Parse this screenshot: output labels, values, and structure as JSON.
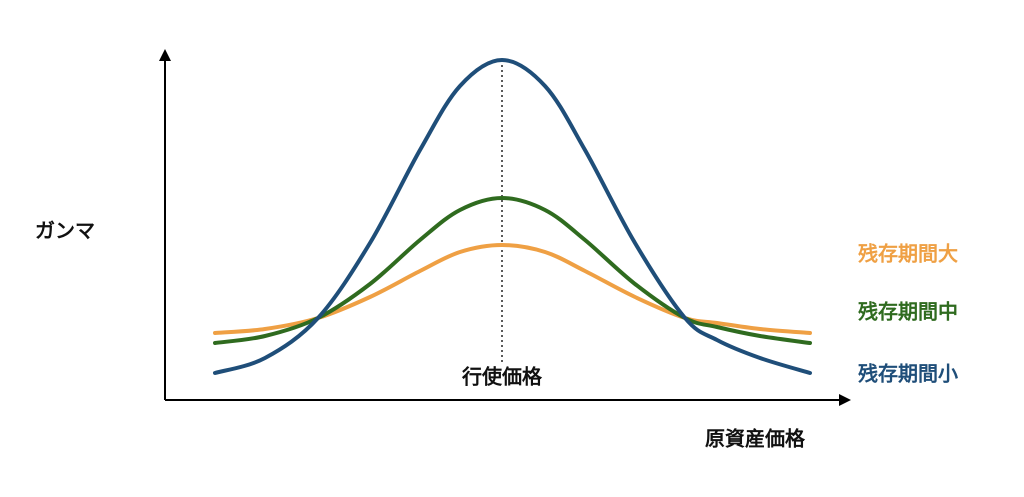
{
  "chart_data": {
    "type": "line",
    "ylabel": "ガンマ",
    "xlabel": "原資産価格",
    "annotations": [
      {
        "text": "行使価格",
        "x": 337
      }
    ],
    "x": [
      50,
      100,
      153,
      205,
      255,
      295,
      337,
      380,
      420,
      470,
      520,
      552,
      595,
      645
    ],
    "xlim": [
      0,
      680
    ],
    "ylim": [
      0,
      340
    ],
    "series": [
      {
        "name": "残存期間大",
        "color": "#efa044",
        "values": [
          67,
          71,
          82,
          103,
          129,
          148,
          155,
          148,
          129,
          103,
          82,
          77,
          71,
          67
        ]
      },
      {
        "name": "残存期間中",
        "color": "#2f6b1f",
        "values": [
          57,
          64,
          82,
          116,
          160,
          190,
          202,
          190,
          160,
          116,
          82,
          73,
          64,
          57
        ]
      },
      {
        "name": "残存期間小",
        "color": "#1f4e79",
        "values": [
          27,
          42,
          82,
          157,
          250,
          314,
          340,
          314,
          250,
          157,
          82,
          60,
          42,
          27
        ]
      }
    ]
  }
}
